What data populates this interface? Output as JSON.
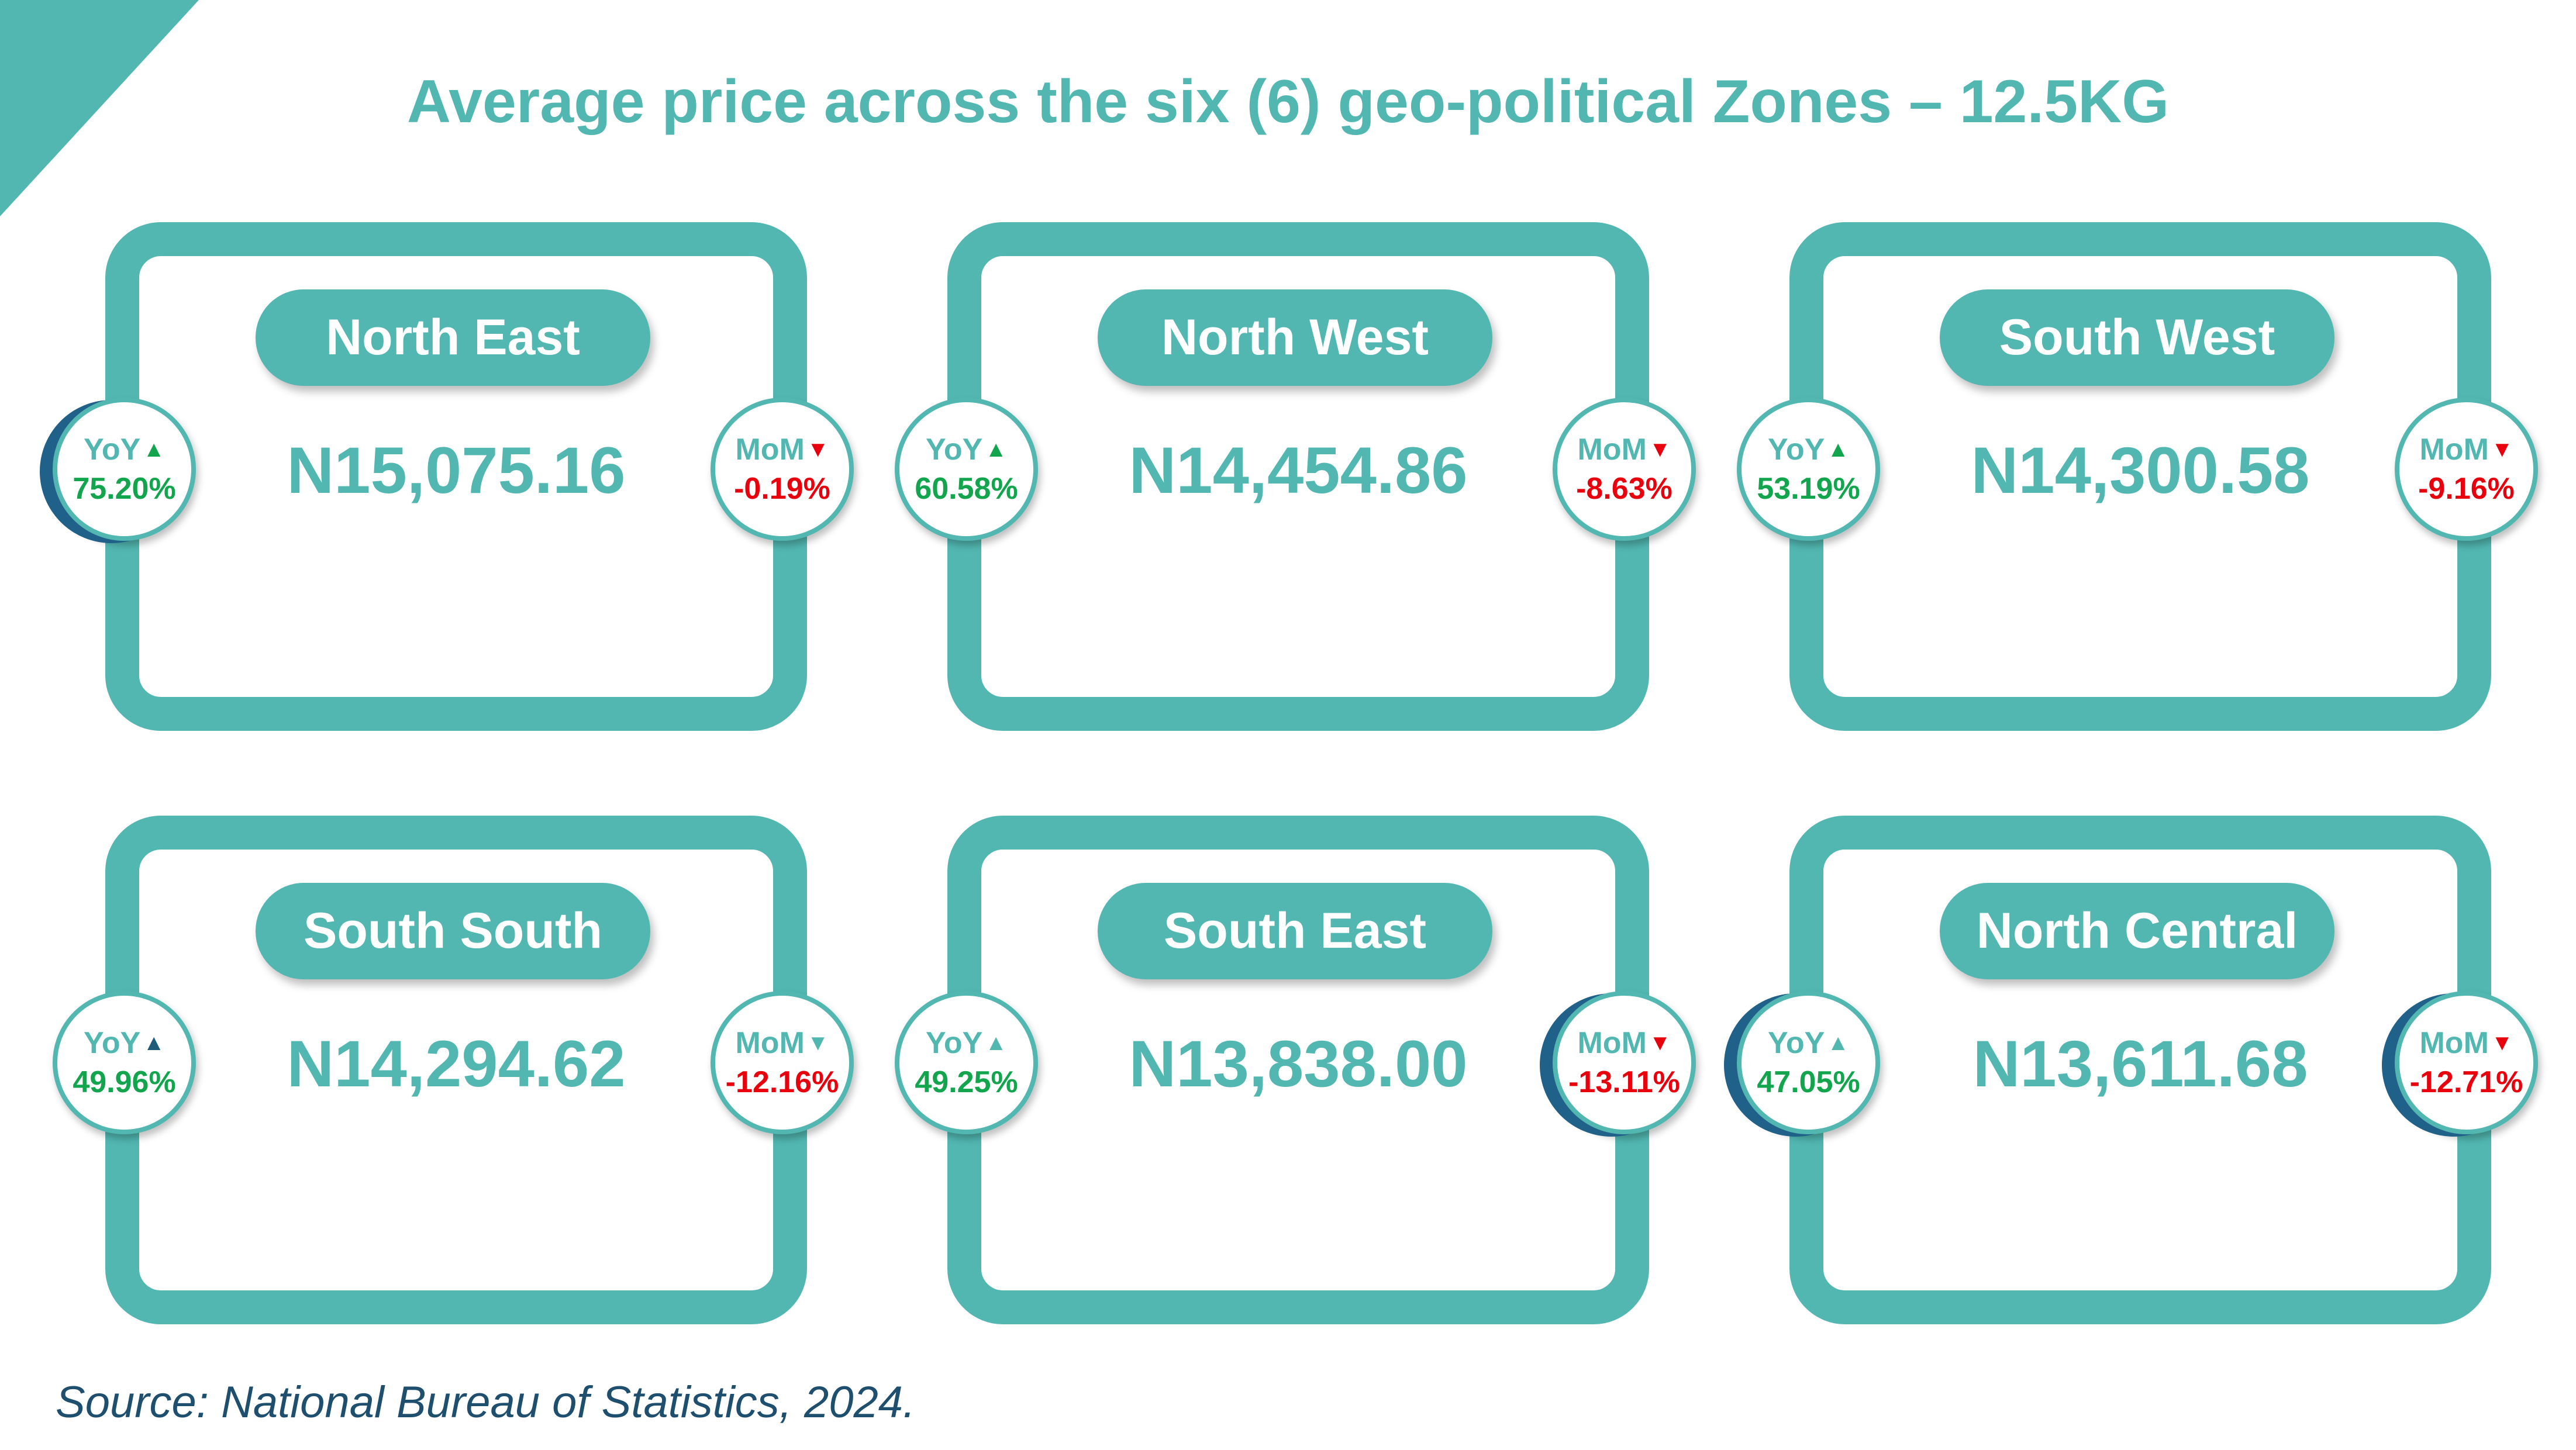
{
  "title": "Average price across the six (6) geo-political Zones – 12.5KG",
  "zones": [
    {
      "name": "North East",
      "price": "N15,075.16",
      "yoy_label": "YoY",
      "yoy_value": "75.20%",
      "yoy_arrow": "▲",
      "mom_label": "MoM",
      "mom_value": "-0.19%",
      "mom_arrow": "▼"
    },
    {
      "name": "North West",
      "price": "N14,454.86",
      "yoy_label": "YoY",
      "yoy_value": "60.58%",
      "yoy_arrow": "▲",
      "mom_label": "MoM",
      "mom_value": "-8.63%",
      "mom_arrow": "▼"
    },
    {
      "name": "South West",
      "price": "N14,300.58",
      "yoy_label": "YoY",
      "yoy_value": "53.19%",
      "yoy_arrow": "▲",
      "mom_label": "MoM",
      "mom_value": "-9.16%",
      "mom_arrow": "▼"
    },
    {
      "name": "South South",
      "price": "N14,294.62",
      "yoy_label": "YoY",
      "yoy_value": "49.96%",
      "yoy_arrow": "▲",
      "mom_label": "MoM",
      "mom_value": "-12.16%",
      "mom_arrow": "▼"
    },
    {
      "name": "South East",
      "price": "N13,838.00",
      "yoy_label": "YoY",
      "yoy_value": "49.25%",
      "yoy_arrow": "▲",
      "mom_label": "MoM",
      "mom_value": "-13.11%",
      "mom_arrow": "▼"
    },
    {
      "name": "North Central",
      "price": "N13,611.68",
      "yoy_label": "YoY",
      "yoy_value": "47.05%",
      "yoy_arrow": "▲",
      "mom_label": "MoM",
      "mom_value": "-12.71%",
      "mom_arrow": "▼"
    }
  ],
  "source": "Source: National Bureau of Statistics, 2024.",
  "colors": {
    "teal": "#52b7b1",
    "navy": "#1f6189",
    "green": "#12a54d",
    "red": "#e8000c"
  }
}
